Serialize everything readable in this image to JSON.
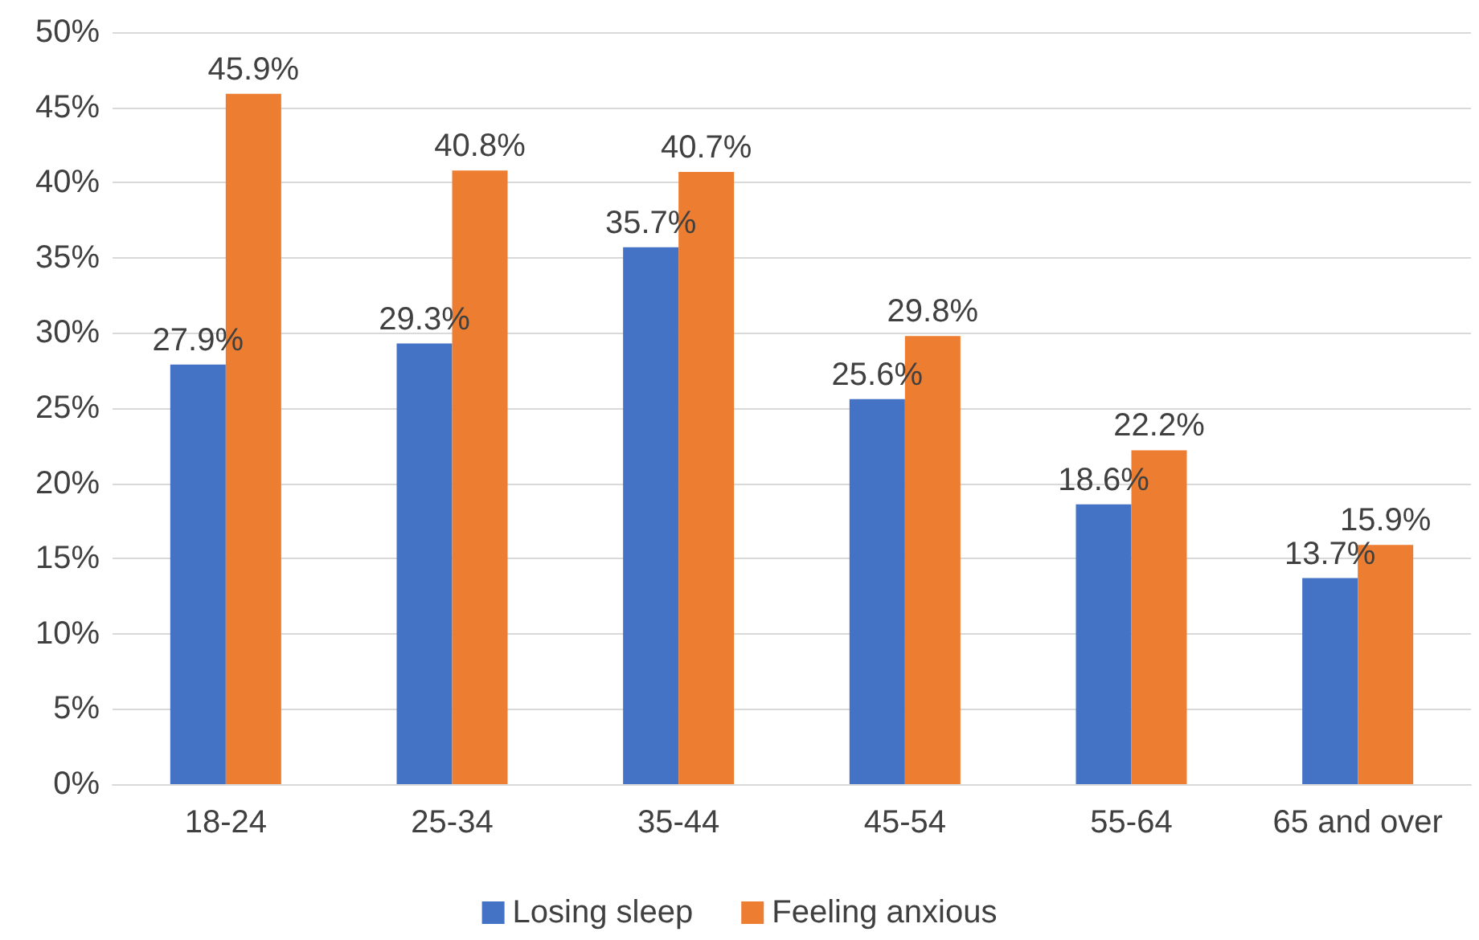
{
  "chart_data": {
    "type": "bar",
    "categories": [
      "18-24",
      "25-34",
      "35-44",
      "45-54",
      "55-64",
      "65 and over"
    ],
    "series": [
      {
        "name": "Losing sleep",
        "color": "#4472c4",
        "values": [
          27.9,
          29.3,
          35.7,
          25.6,
          18.6,
          13.7
        ],
        "value_labels": [
          "27.9%",
          "29.3%",
          "35.7%",
          "25.6%",
          "18.6%",
          "13.7%"
        ]
      },
      {
        "name": "Feeling anxious",
        "color": "#ed7d31",
        "values": [
          45.9,
          40.8,
          40.7,
          29.8,
          22.2,
          15.9
        ],
        "value_labels": [
          "45.9%",
          "40.8%",
          "40.7%",
          "29.8%",
          "22.2%",
          "15.9%"
        ]
      }
    ],
    "ylim": [
      0,
      50
    ],
    "yticks": [
      {
        "value": 0,
        "label": "0%"
      },
      {
        "value": 5,
        "label": "5%"
      },
      {
        "value": 10,
        "label": "10%"
      },
      {
        "value": 15,
        "label": "15%"
      },
      {
        "value": 20,
        "label": "20%"
      },
      {
        "value": 25,
        "label": "25%"
      },
      {
        "value": 30,
        "label": "30%"
      },
      {
        "value": 35,
        "label": "35%"
      },
      {
        "value": 40,
        "label": "40%"
      },
      {
        "value": 45,
        "label": "45%"
      },
      {
        "value": 50,
        "label": "50%"
      }
    ],
    "grid": "y",
    "legend": "bottom"
  }
}
